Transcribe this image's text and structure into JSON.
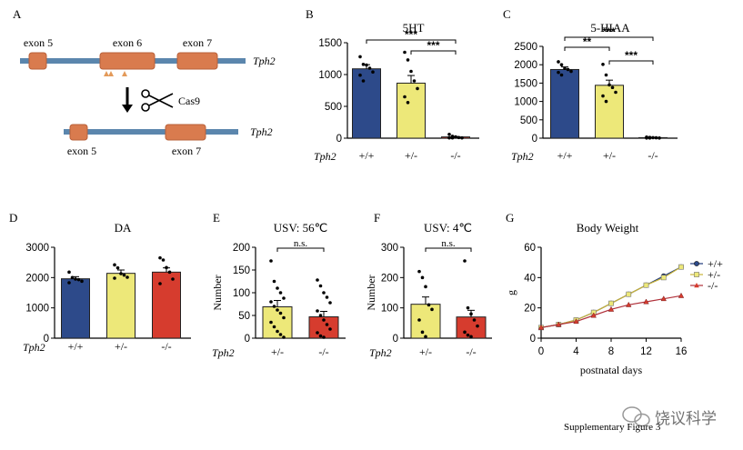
{
  "colors": {
    "wt": "#2d4a8a",
    "het": "#ede879",
    "ko": "#d63c2e",
    "exon": "#d97b4e",
    "exon_border": "#b8603a",
    "gene_line": "#5b86ad",
    "wt_line": "#1f3a7a",
    "het_line": "#c8b33a",
    "ko_line": "#b0303a",
    "target": "#e39a5a"
  },
  "panel_letters": {
    "A": "A",
    "B": "B",
    "C": "C",
    "D": "D",
    "E": "E",
    "F": "F",
    "G": "G"
  },
  "diagram": {
    "exon5": "exon 5",
    "exon6": "exon 6",
    "exon7": "exon 7",
    "gene": "Tph2",
    "cas9": "Cas9",
    "icons": [
      "scissors-icon",
      "arrow-down-icon",
      "sgrna-target-icon"
    ]
  },
  "watermark": {
    "text": "饶议科学",
    "icon": "wechat-icon"
  },
  "caption": "Supplementary Figure 3",
  "chart_data": [
    {
      "id": "B",
      "type": "bar",
      "title": "5HT",
      "xlabel": "",
      "ylabel": "",
      "row_label": "Tph2",
      "categories": [
        "+/+",
        "+/-",
        "-/-"
      ],
      "values": [
        1090,
        865,
        20
      ],
      "errors": [
        65,
        120,
        5
      ],
      "points": [
        [
          1280,
          1160,
          1150,
          1100,
          1040,
          990,
          900
        ],
        [
          1350,
          1230,
          1050,
          900,
          780,
          650,
          560
        ],
        [
          60,
          30,
          20,
          10,
          5,
          5,
          5
        ]
      ],
      "ylim": [
        0,
        1500
      ],
      "yticks": [
        0,
        500,
        1000,
        1500
      ],
      "ytick_labels": [
        "0",
        "500",
        "1000",
        "1500"
      ],
      "significance": [
        {
          "from": 0,
          "to": 2,
          "label": "***"
        },
        {
          "from": 1,
          "to": 2,
          "label": "***"
        }
      ]
    },
    {
      "id": "C",
      "type": "bar",
      "title": "5-HIAA",
      "xlabel": "",
      "ylabel": "",
      "row_label": "Tph2",
      "categories": [
        "+/+",
        "+/-",
        "-/-"
      ],
      "values": [
        1870,
        1440,
        15
      ],
      "errors": [
        70,
        140,
        5
      ],
      "points": [
        [
          2080,
          2000,
          1900,
          1870,
          1820,
          1790,
          1720
        ],
        [
          2010,
          1720,
          1450,
          1380,
          1250,
          1150,
          1000
        ],
        [
          30,
          20,
          15,
          10,
          5,
          5,
          5
        ]
      ],
      "ylim": [
        0,
        2500
      ],
      "yticks": [
        0,
        500,
        1000,
        1500,
        2000,
        2500
      ],
      "ytick_labels": [
        "0",
        "500",
        "1000",
        "1500",
        "2000",
        "2500"
      ],
      "significance": [
        {
          "from": 0,
          "to": 2,
          "label": "***"
        },
        {
          "from": 0,
          "to": 1,
          "label": "**"
        },
        {
          "from": 1,
          "to": 2,
          "label": "***"
        }
      ]
    },
    {
      "id": "D",
      "type": "bar",
      "title": "DA",
      "xlabel": "",
      "ylabel": "",
      "row_label": "Tph2",
      "categories": [
        "+/+",
        "+/-",
        "-/-"
      ],
      "values": [
        1960,
        2140,
        2180
      ],
      "errors": [
        70,
        110,
        140
      ],
      "points": [
        [
          2180,
          2000,
          1950,
          1930,
          1880,
          1830
        ],
        [
          2420,
          2320,
          2130,
          2080,
          2010,
          1980
        ],
        [
          2650,
          2580,
          2330,
          2180,
          1950,
          1800
        ]
      ],
      "ylim": [
        0,
        3000
      ],
      "yticks": [
        0,
        1000,
        2000,
        3000
      ],
      "ytick_labels": [
        "0",
        "1000",
        "2000",
        "3000"
      ],
      "significance": []
    },
    {
      "id": "E",
      "type": "bar",
      "title": "USV: 56℃",
      "xlabel": "",
      "ylabel": "Number",
      "row_label": "Tph2",
      "categories": [
        "+/-",
        "-/-"
      ],
      "values": [
        69,
        47
      ],
      "errors": [
        14,
        12
      ],
      "points": [
        [
          170,
          125,
          110,
          100,
          88,
          80,
          70,
          62,
          55,
          45,
          35,
          25,
          15,
          8,
          2
        ],
        [
          128,
          115,
          100,
          90,
          78,
          60,
          50,
          40,
          30,
          20,
          12,
          5,
          2
        ]
      ],
      "ylim": [
        0,
        200
      ],
      "yticks": [
        0,
        50,
        100,
        150,
        200
      ],
      "ytick_labels": [
        "0",
        "50",
        "100",
        "150",
        "200"
      ],
      "significance": [
        {
          "from": 0,
          "to": 1,
          "label": "n.s."
        }
      ]
    },
    {
      "id": "F",
      "type": "bar",
      "title": "USV: 4℃",
      "xlabel": "",
      "ylabel": "Number",
      "row_label": "Tph2",
      "categories": [
        "+/-",
        "-/-"
      ],
      "values": [
        112,
        70
      ],
      "errors": [
        24,
        22
      ],
      "points": [
        [
          220,
          200,
          170,
          110,
          95,
          60,
          20,
          5
        ],
        [
          255,
          100,
          80,
          60,
          40,
          20,
          10,
          5
        ]
      ],
      "ylim": [
        0,
        300
      ],
      "yticks": [
        0,
        100,
        200,
        300
      ],
      "ytick_labels": [
        "0",
        "100",
        "200",
        "300"
      ],
      "significance": [
        {
          "from": 0,
          "to": 1,
          "label": "n.s."
        }
      ]
    },
    {
      "id": "G",
      "type": "line",
      "title": "Body Weight",
      "xlabel": "postnatal days",
      "ylabel": "g",
      "x": [
        0,
        2,
        4,
        6,
        8,
        10,
        12,
        14,
        16
      ],
      "series": [
        {
          "name": "+/+",
          "values": [
            7,
            9,
            12,
            17,
            23,
            29,
            35,
            41,
            47
          ],
          "marker": "circle"
        },
        {
          "name": "+/-",
          "values": [
            7,
            9,
            12,
            17,
            23,
            29,
            35,
            40,
            47
          ],
          "marker": "square"
        },
        {
          "name": "-/-",
          "values": [
            7,
            9,
            11,
            15,
            19,
            22,
            24,
            26,
            28
          ],
          "marker": "triangle"
        }
      ],
      "xlim": [
        0,
        16
      ],
      "ylim": [
        0,
        60
      ],
      "xticks": [
        0,
        4,
        8,
        12,
        16
      ],
      "xtick_labels": [
        "0",
        "4",
        "8",
        "12",
        "16"
      ],
      "yticks": [
        0,
        20,
        40,
        60
      ],
      "ytick_labels": [
        "0",
        "20",
        "40",
        "60"
      ],
      "legend": "top-right"
    }
  ]
}
